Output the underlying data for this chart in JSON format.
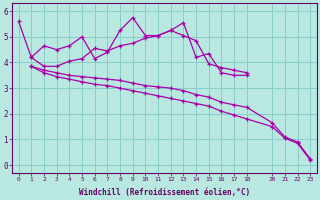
{
  "xlabel": "Windchill (Refroidissement éolien,°C)",
  "background_color": "#b8e8e0",
  "grid_color": "#88cccc",
  "line_color": "#aa00aa",
  "xlim": [
    -0.5,
    23.5
  ],
  "ylim": [
    -0.3,
    6.3
  ],
  "xticks": [
    0,
    1,
    2,
    3,
    4,
    5,
    6,
    7,
    8,
    9,
    10,
    11,
    12,
    13,
    14,
    15,
    16,
    17,
    18,
    20,
    21,
    22,
    23
  ],
  "yticks": [
    0,
    1,
    2,
    3,
    4,
    5,
    6
  ],
  "line1_x": [
    0,
    1,
    2,
    3,
    4,
    5,
    6,
    7,
    8,
    9,
    10,
    11,
    12,
    13,
    14,
    15,
    16,
    17,
    18
  ],
  "line1_y": [
    5.6,
    4.2,
    4.65,
    4.5,
    4.65,
    5.0,
    4.15,
    4.4,
    5.25,
    5.75,
    5.05,
    5.05,
    5.25,
    5.55,
    4.2,
    4.35,
    3.6,
    3.5,
    3.5
  ],
  "line2_x": [
    1,
    2,
    3,
    4,
    5,
    6,
    7,
    8,
    9,
    10,
    11,
    12,
    13,
    14,
    15,
    16,
    17,
    18
  ],
  "line2_y": [
    4.2,
    3.85,
    3.85,
    4.05,
    4.15,
    4.55,
    4.45,
    4.65,
    4.75,
    4.95,
    5.05,
    5.25,
    5.05,
    4.85,
    3.95,
    3.8,
    3.7,
    3.6
  ],
  "line3_x": [
    1,
    2,
    3,
    4,
    5,
    6,
    7,
    8,
    9,
    10,
    11,
    12,
    13,
    14,
    15,
    16,
    17,
    18,
    20,
    21,
    22,
    23
  ],
  "line3_y": [
    3.85,
    3.7,
    3.6,
    3.5,
    3.45,
    3.4,
    3.35,
    3.3,
    3.2,
    3.1,
    3.05,
    3.0,
    2.9,
    2.75,
    2.65,
    2.45,
    2.35,
    2.25,
    1.65,
    1.1,
    0.9,
    0.25
  ],
  "line4_x": [
    1,
    2,
    3,
    4,
    5,
    6,
    7,
    8,
    9,
    10,
    11,
    12,
    13,
    14,
    15,
    16,
    17,
    18,
    20,
    21,
    22,
    23
  ],
  "line4_y": [
    3.85,
    3.6,
    3.45,
    3.35,
    3.25,
    3.15,
    3.1,
    3.0,
    2.9,
    2.8,
    2.7,
    2.6,
    2.5,
    2.4,
    2.3,
    2.1,
    1.95,
    1.8,
    1.5,
    1.05,
    0.85,
    0.2
  ]
}
